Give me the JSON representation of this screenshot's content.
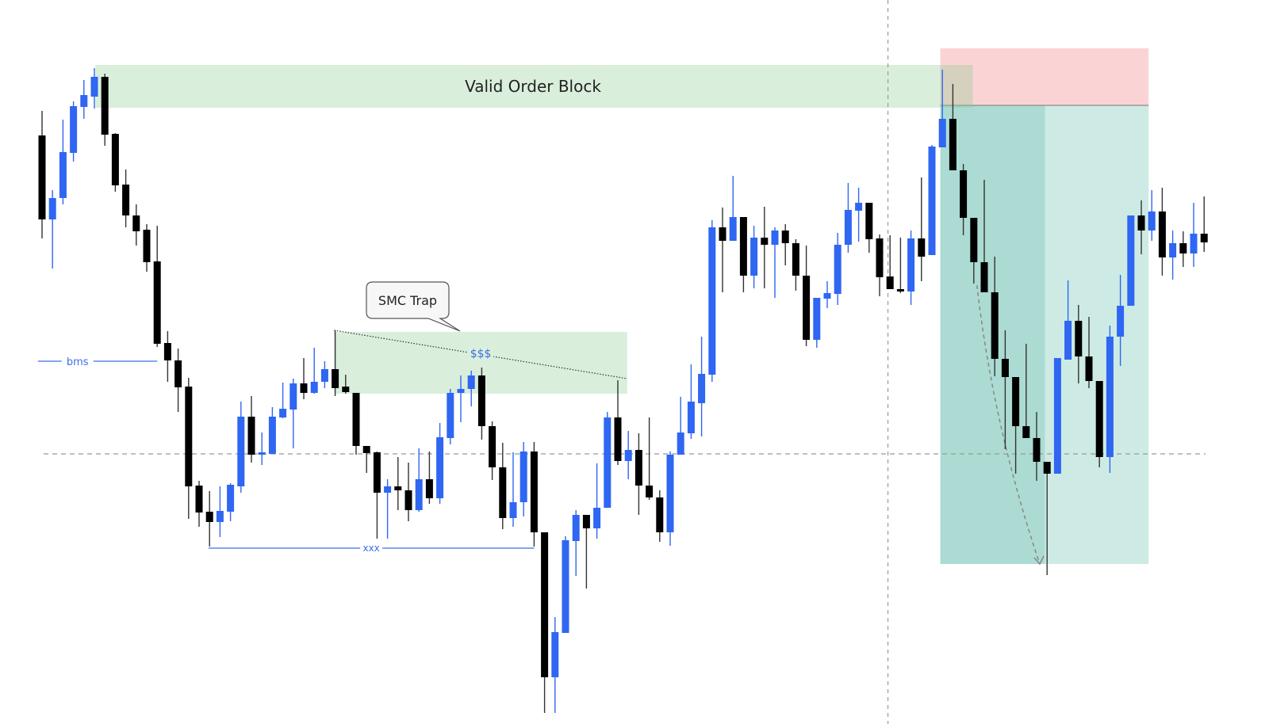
{
  "chart_data": {
    "type": "candlestick",
    "title": "",
    "xlabel": "",
    "ylabel": "",
    "grid": false,
    "colors": {
      "bullish": "#2f66f2",
      "bearish": "#000000",
      "order_block": "#86c68c",
      "stop_zone": "#f07878",
      "target_zone_dark": "#7fc8bb",
      "target_zone_light": "#b8e2d8",
      "level_line": "#3a6fe8"
    },
    "candle_format": [
      "open",
      "high",
      "low",
      "close"
    ],
    "candles": [
      [
        829,
        860,
        699,
        723
      ],
      [
        723,
        760,
        661,
        750
      ],
      [
        750,
        849,
        742,
        808
      ],
      [
        807,
        872,
        796,
        866
      ],
      [
        865,
        899,
        850,
        880
      ],
      [
        878,
        914,
        863,
        903
      ],
      [
        903,
        907,
        816,
        830
      ],
      [
        831,
        832,
        758,
        766
      ],
      [
        767,
        786,
        713,
        728
      ],
      [
        728,
        742,
        690,
        708
      ],
      [
        710,
        717,
        657,
        669
      ],
      [
        670,
        715,
        562,
        566
      ],
      [
        567,
        582,
        518,
        545
      ],
      [
        545,
        560,
        480,
        511
      ],
      [
        512,
        523,
        345,
        386
      ],
      [
        387,
        393,
        335,
        353
      ],
      [
        354,
        380,
        310,
        341
      ],
      [
        341,
        386,
        322,
        355
      ],
      [
        354,
        390,
        342,
        388
      ],
      [
        386,
        493,
        378,
        474
      ],
      [
        474,
        500,
        416,
        426
      ],
      [
        426,
        454,
        413,
        429
      ],
      [
        427,
        486,
        427,
        474
      ],
      [
        473,
        517,
        472,
        484
      ],
      [
        483,
        522,
        434,
        516
      ],
      [
        516,
        548,
        496,
        504
      ],
      [
        504,
        561,
        503,
        518
      ],
      [
        518,
        544,
        510,
        534
      ],
      [
        534,
        583,
        500,
        510
      ],
      [
        512,
        527,
        503,
        505
      ],
      [
        504,
        504,
        426,
        437
      ],
      [
        437,
        437,
        403,
        428
      ],
      [
        429,
        430,
        320,
        378
      ],
      [
        378,
        395,
        320,
        386
      ],
      [
        386,
        423,
        356,
        381
      ],
      [
        381,
        416,
        342,
        356
      ],
      [
        356,
        434,
        354,
        395
      ],
      [
        395,
        430,
        364,
        371
      ],
      [
        371,
        466,
        364,
        448
      ],
      [
        447,
        509,
        439,
        504
      ],
      [
        504,
        526,
        467,
        509
      ],
      [
        509,
        532,
        487,
        526
      ],
      [
        526,
        536,
        445,
        462
      ],
      [
        462,
        468,
        394,
        410
      ],
      [
        410,
        441,
        332,
        346
      ],
      [
        346,
        429,
        335,
        366
      ],
      [
        366,
        442,
        348,
        430
      ],
      [
        430,
        442,
        310,
        328
      ],
      [
        328,
        328,
        100,
        145
      ],
      [
        145,
        221,
        100,
        202
      ],
      [
        201,
        323,
        201,
        318
      ],
      [
        317,
        356,
        273,
        350
      ],
      [
        350,
        350,
        257,
        333
      ],
      [
        333,
        415,
        320,
        359
      ],
      [
        359,
        480,
        359,
        473
      ],
      [
        473,
        520,
        413,
        418
      ],
      [
        418,
        456,
        395,
        432
      ],
      [
        432,
        453,
        350,
        387
      ],
      [
        387,
        473,
        369,
        372
      ],
      [
        372,
        381,
        316,
        328
      ],
      [
        328,
        430,
        311,
        426
      ],
      [
        426,
        499,
        426,
        454
      ],
      [
        453,
        540,
        446,
        493
      ],
      [
        491,
        575,
        449,
        528
      ],
      [
        527,
        722,
        518,
        713
      ],
      [
        713,
        738,
        631,
        696
      ],
      [
        696,
        778,
        696,
        726
      ],
      [
        726,
        726,
        631,
        652
      ],
      [
        652,
        715,
        636,
        700
      ],
      [
        700,
        739,
        636,
        691
      ],
      [
        691,
        713,
        624,
        709
      ],
      [
        709,
        717,
        665,
        693
      ],
      [
        693,
        698,
        633,
        652
      ],
      [
        652,
        690,
        563,
        571
      ],
      [
        571,
        624,
        561,
        624
      ],
      [
        623,
        645,
        611,
        630
      ],
      [
        629,
        706,
        615,
        691
      ],
      [
        691,
        769,
        681,
        735
      ],
      [
        734,
        763,
        695,
        744
      ],
      [
        744,
        744,
        681,
        698
      ],
      [
        699,
        704,
        626,
        650
      ],
      [
        651,
        703,
        635,
        635
      ],
      [
        635,
        700,
        630,
        632
      ],
      [
        632,
        709,
        615,
        699
      ],
      [
        699,
        776,
        645,
        676
      ],
      [
        678,
        817,
        678,
        815
      ],
      [
        814,
        912,
        814,
        850
      ],
      [
        850,
        894,
        785,
        785
      ],
      [
        785,
        793,
        703,
        725
      ],
      [
        725,
        725,
        642,
        669
      ],
      [
        669,
        773,
        631,
        631
      ],
      [
        631,
        676,
        525,
        547
      ],
      [
        547,
        583,
        433,
        524
      ],
      [
        524,
        524,
        402,
        462
      ],
      [
        462,
        566,
        447,
        447
      ],
      [
        447,
        480,
        393,
        417
      ],
      [
        417,
        417,
        274,
        402
      ],
      [
        402,
        548,
        402,
        548
      ],
      [
        546,
        646,
        546,
        595
      ],
      [
        595,
        615,
        516,
        550
      ],
      [
        550,
        600,
        510,
        519
      ],
      [
        519,
        519,
        410,
        423
      ],
      [
        423,
        589,
        403,
        575
      ],
      [
        575,
        653,
        538,
        614
      ],
      [
        614,
        728,
        614,
        728
      ],
      [
        728,
        747,
        679,
        709
      ],
      [
        709,
        760,
        696,
        733
      ],
      [
        733,
        763,
        652,
        675
      ],
      [
        675,
        709,
        647,
        693
      ],
      [
        693,
        708,
        663,
        680
      ],
      [
        680,
        744,
        663,
        705
      ],
      [
        705,
        752,
        682,
        694
      ]
    ],
    "annotations": {
      "order_block": {
        "label": "Valid Order Block",
        "from_index": 5.1,
        "to_index": 88.9,
        "top": 918,
        "bottom": 864
      },
      "stop_zone": {
        "from_index": 85.8,
        "to_index": 105.7,
        "top": 939,
        "bottom": 867
      },
      "target_zone": {
        "from_index": 85.8,
        "split_index": 95.8,
        "to_index": 105.7,
        "top": 867,
        "bottom": 288
      },
      "trap_zone": {
        "from_index": 27.9,
        "to_index": 55.9,
        "top": 581,
        "bottom": 503
      },
      "trap_callout": {
        "label": "SMC Trap"
      },
      "liquidity_line": {
        "label": "$$$",
        "from_index": 27.9,
        "from_price": 583,
        "to_index": 55.9,
        "to_price": 522
      },
      "bms_line": {
        "label": "bms",
        "from_index": -0.4,
        "to_index": 11,
        "price": 544
      },
      "xxx_line": {
        "label": "xxx",
        "from_index": 15.9,
        "to_index": 47,
        "price": 308
      },
      "horizontal_dashed_level": 427,
      "vertical_dashed_index": 80.8,
      "projection_path": [
        [
          89.3,
          640
        ],
        [
          95.3,
          288
        ]
      ]
    }
  }
}
